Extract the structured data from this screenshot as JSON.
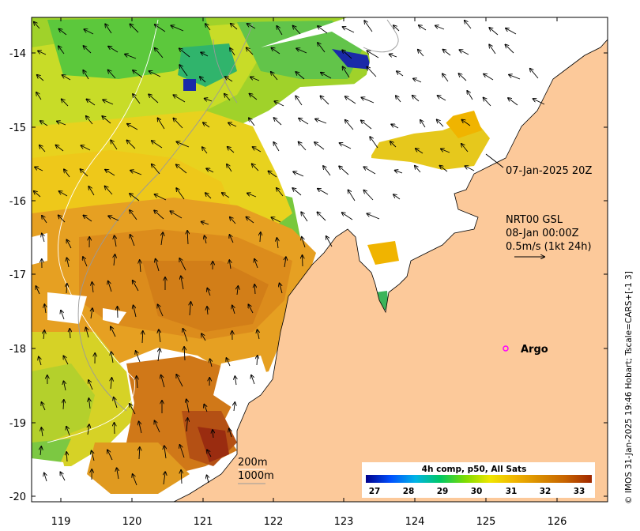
{
  "map": {
    "y_ticks": [
      "-14",
      "-15",
      "-16",
      "-17",
      "-18",
      "-19",
      "-20"
    ],
    "x_ticks": [
      "119",
      "120",
      "121",
      "122",
      "123",
      "124",
      "125",
      "126"
    ],
    "timestamp": "07-Jan-2025 20Z",
    "current_product": {
      "line1": "NRT00 GSL",
      "line2": "08-Jan 00:00Z",
      "line3": "0.5m/s (1kt 24h)"
    },
    "argo_label": "Argo",
    "isobaths": [
      "200m",
      "1000m"
    ],
    "colorbar": {
      "title": "4h comp, p50, All Sats",
      "ticks": [
        "27",
        "28",
        "29",
        "30",
        "31",
        "32",
        "33"
      ],
      "colors": [
        "#00008b",
        "#0050ff",
        "#00b4e6",
        "#00c864",
        "#7ddc00",
        "#f0e600",
        "#f0b400",
        "#d98c00",
        "#c86400",
        "#a02800"
      ]
    },
    "credit": "© IMOS 31-Jan-2025 19:46 Hobart; Tscale=CARS+[-1 3]",
    "colors": {
      "land": "#fcc99a",
      "no_data": "#ffffff",
      "argo_marker": "#ff00ff"
    }
  }
}
